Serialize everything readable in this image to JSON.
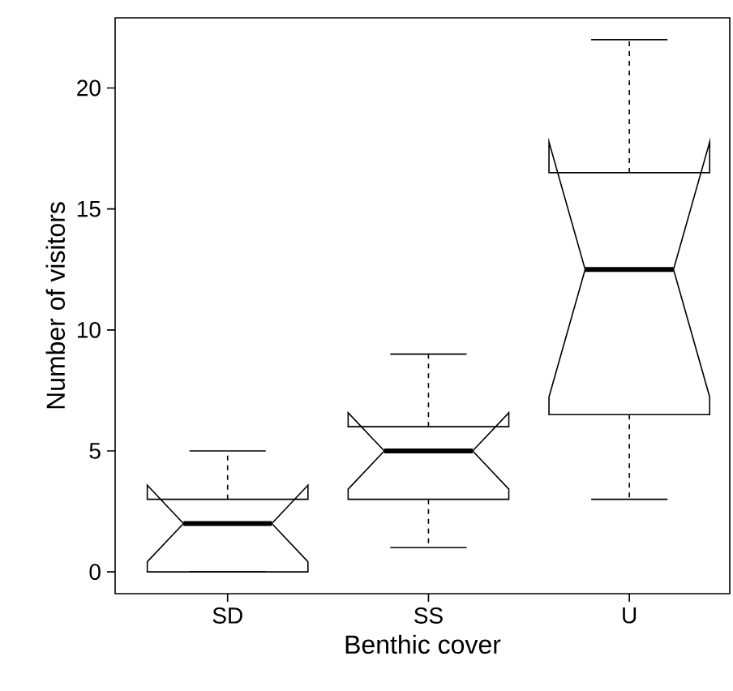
{
  "chart_data": {
    "type": "box",
    "xlabel": "Benthic cover",
    "ylabel": "Number of visitors",
    "categories": [
      "SD",
      "SS",
      "U"
    ],
    "boxes": [
      {
        "low": 0,
        "q1": 0,
        "median": 2,
        "q3": 3,
        "high": 5
      },
      {
        "low": 1,
        "q1": 3,
        "median": 5,
        "q3": 6,
        "high": 9
      },
      {
        "low": 3,
        "q1": 6.5,
        "median": 12.5,
        "q3": 16.5,
        "high": 22
      }
    ],
    "ylim": [
      -0.9,
      22.9
    ],
    "yticks": [
      0,
      5,
      10,
      15,
      20
    ]
  }
}
